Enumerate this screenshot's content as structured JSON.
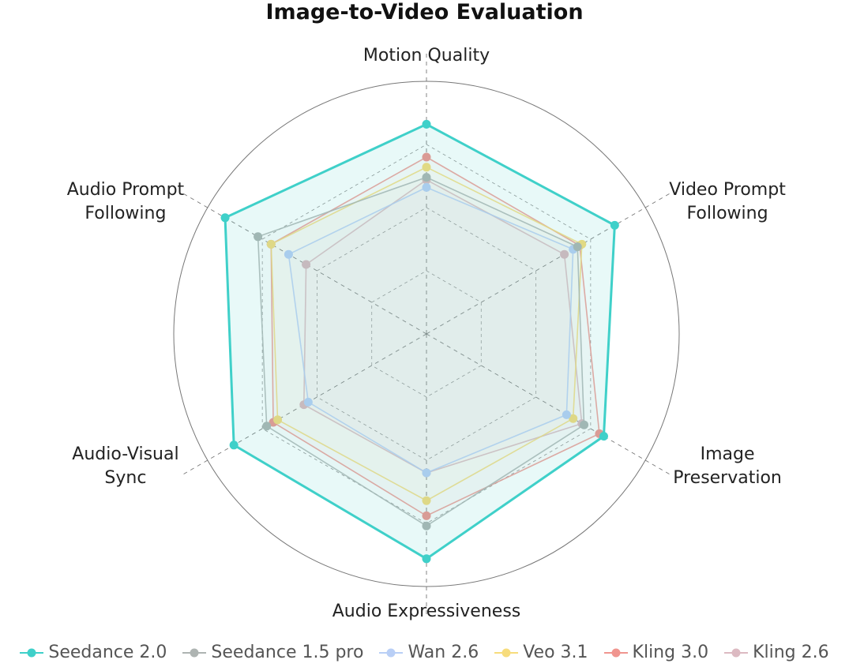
{
  "chart_data": {
    "type": "radar",
    "title": "Image-to-Video Evaluation",
    "categories": [
      "Motion Quality",
      "Video Prompt\nFollowing",
      "Image\nPreservation",
      "Audio Expressiveness",
      "Audio-Visual\nSync",
      "Audio Prompt\nFollowing"
    ],
    "rlim": [
      0,
      100
    ],
    "rticks": [
      25,
      50,
      75
    ],
    "grid": true,
    "series": [
      {
        "name": "Seedance 2.0",
        "color": "#3fd0c9",
        "values": [
          83,
          86,
          81,
          89,
          88,
          92
        ]
      },
      {
        "name": "Seedance 1.5 pro",
        "color": "#aeb4b2",
        "values": [
          62,
          69,
          72,
          76,
          73,
          77
        ]
      },
      {
        "name": "Wan 2.6",
        "color": "#b9cff6",
        "values": [
          58,
          67,
          64,
          55,
          54,
          63
        ]
      },
      {
        "name": "Veo 3.1",
        "color": "#f7dc7c",
        "values": [
          66,
          71,
          67,
          66,
          68,
          71
        ]
      },
      {
        "name": "Kling 3.0",
        "color": "#f0958f",
        "values": [
          70,
          70,
          79,
          72,
          70,
          71
        ]
      },
      {
        "name": "Kling 2.6",
        "color": "#dcbac2",
        "values": [
          61,
          63,
          71,
          55,
          56,
          55
        ]
      }
    ]
  }
}
